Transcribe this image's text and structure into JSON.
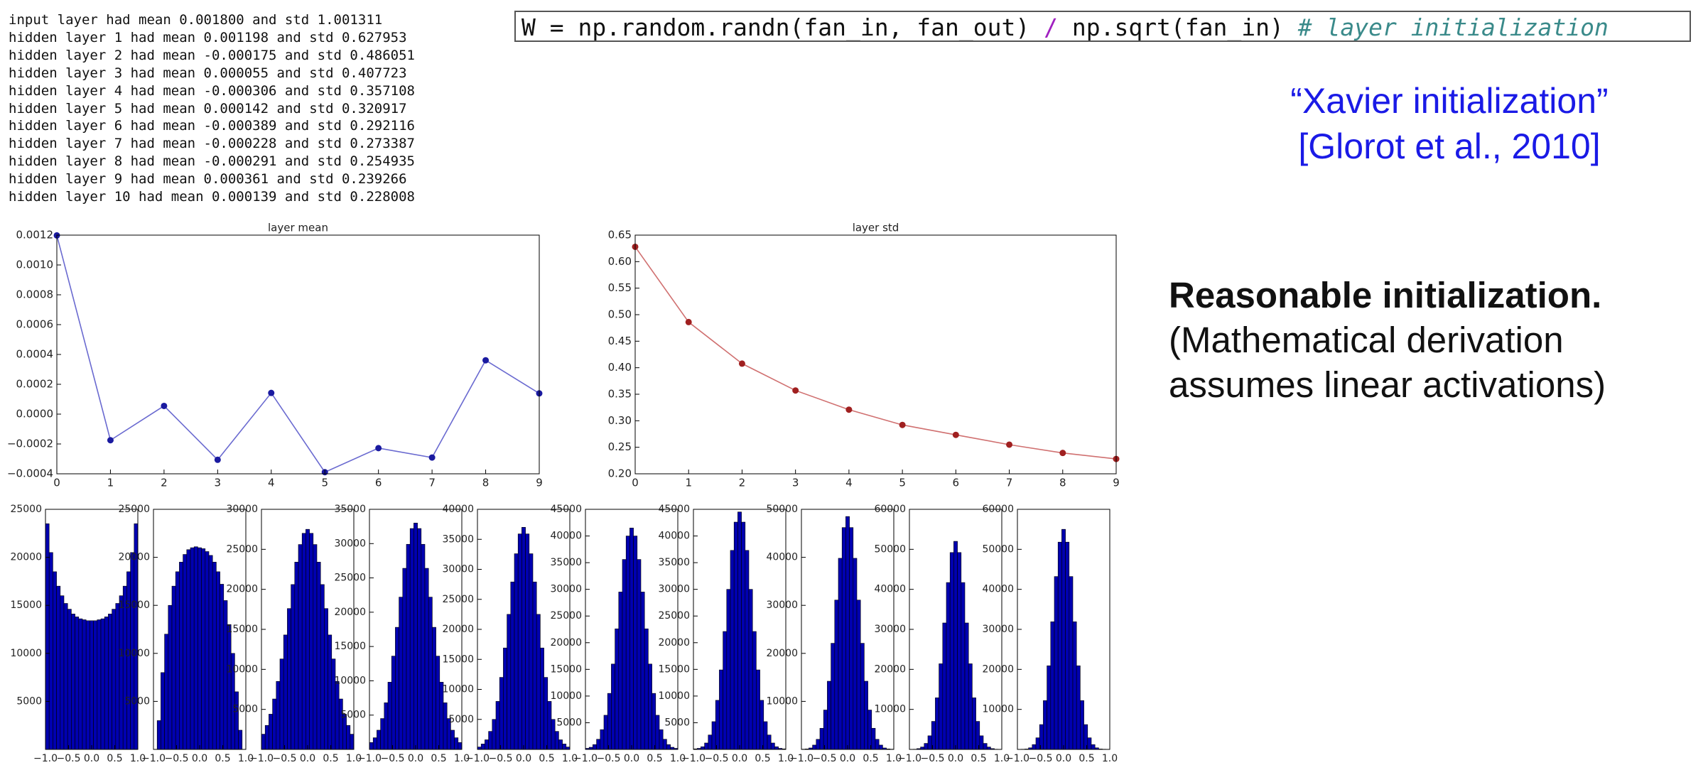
{
  "log": {
    "lines": [
      "input layer had mean 0.001800 and std 1.001311",
      "hidden layer 1 had mean 0.001198 and std 0.627953",
      "hidden layer 2 had mean -0.000175 and std 0.486051",
      "hidden layer 3 had mean 0.000055 and std 0.407723",
      "hidden layer 4 had mean -0.000306 and std 0.357108",
      "hidden layer 5 had mean 0.000142 and std 0.320917",
      "hidden layer 6 had mean -0.000389 and std 0.292116",
      "hidden layer 7 had mean -0.000228 and std 0.273387",
      "hidden layer 8 had mean -0.000291 and std 0.254935",
      "hidden layer 9 had mean 0.000361 and std 0.239266",
      "hidden layer 10 had mean 0.000139 and std 0.228008"
    ]
  },
  "code": {
    "parts": [
      "W = np.random.randn(fan_in, fan_out) ",
      "/",
      " np.sqrt(fan_in) ",
      "# layer initialization"
    ]
  },
  "citation": {
    "lines": [
      "“Xavier initialization”",
      "[Glorot et al., 2010]"
    ]
  },
  "note": {
    "title": "Reasonable initialization.",
    "lines": [
      "(Mathematical derivation",
      "assumes linear activations)"
    ]
  },
  "chart_data": [
    {
      "type": "line",
      "title": "layer mean",
      "x": [
        0,
        1,
        2,
        3,
        4,
        5,
        6,
        7,
        8,
        9
      ],
      "values": [
        0.001198,
        -0.000175,
        5.5e-05,
        -0.000306,
        0.000142,
        -0.000389,
        -0.000228,
        -0.000291,
        0.000361,
        0.000139
      ],
      "xlim": [
        0,
        9
      ],
      "ylim": [
        -0.0004,
        0.0012
      ],
      "xticks": [
        0,
        1,
        2,
        3,
        4,
        5,
        6,
        7,
        8,
        9
      ],
      "yticks": [
        {
          "value": -0.0004,
          "label": "−0.0004"
        },
        {
          "value": -0.0002,
          "label": "−0.0002"
        },
        {
          "value": 0,
          "label": "0.0000"
        },
        0.0002,
        0.0004,
        0.0006,
        0.0008,
        {
          "value": 0.001,
          "label": "0.0010"
        },
        0.0012
      ],
      "color": "#6a6ad0",
      "marker_color": "#1a1aa0"
    },
    {
      "type": "line",
      "title": "layer std",
      "x": [
        0,
        1,
        2,
        3,
        4,
        5,
        6,
        7,
        8,
        9
      ],
      "values": [
        0.627953,
        0.486051,
        0.407723,
        0.357108,
        0.320917,
        0.292116,
        0.273387,
        0.254935,
        0.239266,
        0.228008
      ],
      "xlim": [
        0,
        9
      ],
      "ylim": [
        0.2,
        0.65
      ],
      "xticks": [
        0,
        1,
        2,
        3,
        4,
        5,
        6,
        7,
        8,
        9
      ],
      "yticks": [
        {
          "value": 0.2,
          "label": "0.20"
        },
        0.25,
        {
          "value": 0.3,
          "label": "0.30"
        },
        0.35,
        {
          "value": 0.4,
          "label": "0.40"
        },
        0.45,
        {
          "value": 0.5,
          "label": "0.50"
        },
        0.55,
        {
          "value": 0.6,
          "label": "0.60"
        },
        0.65
      ],
      "color": "#d07070",
      "marker_color": "#a02020"
    },
    {
      "type": "histogram",
      "bins": [
        -1,
        -0.92,
        -0.84,
        -0.76,
        -0.68,
        -0.6,
        -0.52,
        -0.44,
        -0.36,
        -0.28,
        -0.2,
        -0.12,
        -0.04,
        0.04,
        0.12,
        0.2,
        0.28,
        0.36,
        0.44,
        0.52,
        0.6,
        0.68,
        0.76,
        0.84,
        0.92,
        1
      ],
      "values": [
        23500,
        20500,
        18500,
        17000,
        16000,
        15200,
        14600,
        14100,
        13800,
        13600,
        13500,
        13400,
        13400,
        13400,
        13500,
        13600,
        13800,
        14100,
        14600,
        15200,
        16000,
        17000,
        18500,
        20500,
        23500
      ],
      "xlim": [
        -1,
        1
      ],
      "ylim": [
        0,
        25000
      ],
      "xticks": [
        {
          "value": -1,
          "label": "−1.0"
        },
        {
          "value": -0.5,
          "label": "−0.5"
        },
        {
          "value": 0,
          "label": "0.0"
        },
        0.5,
        {
          "value": 1,
          "label": "1.0"
        }
      ],
      "yticks": [
        5000,
        10000,
        15000,
        20000,
        25000
      ],
      "color": "#0000b0"
    },
    {
      "type": "histogram",
      "bins": [
        -1,
        -0.92,
        -0.84,
        -0.76,
        -0.68,
        -0.6,
        -0.52,
        -0.44,
        -0.36,
        -0.28,
        -0.2,
        -0.12,
        -0.04,
        0.04,
        0.12,
        0.2,
        0.28,
        0.36,
        0.44,
        0.52,
        0.6,
        0.68,
        0.76,
        0.84,
        0.92,
        1
      ],
      "values": [
        0,
        3000,
        8000,
        12000,
        15000,
        17000,
        18500,
        19500,
        20300,
        20800,
        21000,
        21100,
        21000,
        20900,
        20600,
        20200,
        19500,
        18500,
        17200,
        15500,
        13000,
        10000,
        6000,
        2000,
        0
      ],
      "xlim": [
        -1,
        1
      ],
      "ylim": [
        0,
        25000
      ],
      "xticks": [
        {
          "value": -1,
          "label": "−1.0"
        },
        {
          "value": -0.5,
          "label": "−0.5"
        },
        {
          "value": 0,
          "label": "0.0"
        },
        0.5,
        {
          "value": 1,
          "label": "1.0"
        }
      ],
      "yticks": [
        5000,
        10000,
        15000,
        20000,
        25000
      ],
      "color": "#0000b0"
    },
    {
      "type": "histogram",
      "bins": [
        -1,
        -0.92,
        -0.84,
        -0.76,
        -0.68,
        -0.6,
        -0.52,
        -0.44,
        -0.36,
        -0.28,
        -0.2,
        -0.12,
        -0.04,
        0.04,
        0.12,
        0.2,
        0.28,
        0.36,
        0.44,
        0.52,
        0.6,
        0.68,
        0.76,
        0.84,
        0.92,
        1
      ],
      "values": [
        1900,
        3000,
        4400,
        6300,
        8500,
        11300,
        14300,
        17600,
        20600,
        23400,
        25600,
        27000,
        27500,
        27000,
        25600,
        23400,
        20600,
        17600,
        14300,
        11300,
        8500,
        6300,
        4400,
        3000,
        1900
      ],
      "xlim": [
        -1,
        1
      ],
      "ylim": [
        0,
        30000
      ],
      "xticks": [
        {
          "value": -1,
          "label": "−1.0"
        },
        {
          "value": -0.5,
          "label": "−0.5"
        },
        {
          "value": 0,
          "label": "0.0"
        },
        0.5,
        {
          "value": 1,
          "label": "1.0"
        }
      ],
      "yticks": [
        5000,
        10000,
        15000,
        20000,
        25000,
        30000
      ],
      "color": "#0000b0"
    },
    {
      "type": "histogram",
      "bins": [
        -1,
        -0.92,
        -0.84,
        -0.76,
        -0.68,
        -0.6,
        -0.52,
        -0.44,
        -0.36,
        -0.28,
        -0.2,
        -0.12,
        -0.04,
        0.04,
        0.12,
        0.2,
        0.28,
        0.36,
        0.44,
        0.52,
        0.6,
        0.68,
        0.76,
        0.84,
        0.92,
        1
      ],
      "values": [
        1000,
        1700,
        2800,
        4500,
        6800,
        9800,
        13600,
        17800,
        22200,
        26400,
        29900,
        32200,
        33000,
        32200,
        29900,
        26400,
        22200,
        17800,
        13600,
        9800,
        6800,
        4500,
        2800,
        1700,
        1000
      ],
      "xlim": [
        -1,
        1
      ],
      "ylim": [
        0,
        35000
      ],
      "xticks": [
        {
          "value": -1,
          "label": "−1.0"
        },
        {
          "value": -0.5,
          "label": "−0.5"
        },
        {
          "value": 0,
          "label": "0.0"
        },
        0.5,
        {
          "value": 1,
          "label": "1.0"
        }
      ],
      "yticks": [
        5000,
        10000,
        15000,
        20000,
        25000,
        30000,
        35000
      ],
      "color": "#0000b0"
    },
    {
      "type": "histogram",
      "bins": [
        -1,
        -0.92,
        -0.84,
        -0.76,
        -0.68,
        -0.6,
        -0.52,
        -0.44,
        -0.36,
        -0.28,
        -0.2,
        -0.12,
        -0.04,
        0.04,
        0.12,
        0.2,
        0.28,
        0.36,
        0.44,
        0.52,
        0.6,
        0.68,
        0.76,
        0.84,
        0.92,
        1
      ],
      "values": [
        400,
        900,
        1600,
        3000,
        5000,
        8000,
        12000,
        16900,
        22500,
        27900,
        32600,
        35900,
        37000,
        35900,
        32600,
        27900,
        22500,
        16900,
        12000,
        8000,
        5000,
        3000,
        1600,
        900,
        400
      ],
      "xlim": [
        -1,
        1
      ],
      "ylim": [
        0,
        40000
      ],
      "xticks": [
        {
          "value": -1,
          "label": "−1.0"
        },
        {
          "value": -0.5,
          "label": "−0.5"
        },
        {
          "value": 0,
          "label": "0.0"
        },
        0.5,
        {
          "value": 1,
          "label": "1.0"
        }
      ],
      "yticks": [
        5000,
        10000,
        15000,
        20000,
        25000,
        30000,
        35000,
        40000
      ],
      "color": "#0000b0"
    },
    {
      "type": "histogram",
      "bins": [
        -1,
        -0.92,
        -0.84,
        -0.76,
        -0.68,
        -0.6,
        -0.52,
        -0.44,
        -0.36,
        -0.28,
        -0.2,
        -0.12,
        -0.04,
        0.04,
        0.12,
        0.2,
        0.28,
        0.36,
        0.44,
        0.52,
        0.6,
        0.68,
        0.76,
        0.84,
        0.92,
        1
      ],
      "values": [
        200,
        400,
        900,
        1900,
        3700,
        6400,
        10500,
        16000,
        22600,
        29500,
        35600,
        40000,
        41500,
        40000,
        35600,
        29500,
        22600,
        16000,
        10500,
        6400,
        3700,
        1900,
        900,
        400,
        200
      ],
      "xlim": [
        -1,
        1
      ],
      "ylim": [
        0,
        45000
      ],
      "xticks": [
        {
          "value": -1,
          "label": "−1.0"
        },
        {
          "value": -0.5,
          "label": "−0.5"
        },
        {
          "value": 0,
          "label": "0.0"
        },
        0.5,
        {
          "value": 1,
          "label": "1.0"
        }
      ],
      "yticks": [
        5000,
        10000,
        15000,
        20000,
        25000,
        30000,
        35000,
        40000,
        45000
      ],
      "color": "#0000b0"
    },
    {
      "type": "histogram",
      "bins": [
        -1,
        -0.92,
        -0.84,
        -0.76,
        -0.68,
        -0.6,
        -0.52,
        -0.44,
        -0.36,
        -0.28,
        -0.2,
        -0.12,
        -0.04,
        0.04,
        0.12,
        0.2,
        0.28,
        0.36,
        0.44,
        0.52,
        0.6,
        0.68,
        0.76,
        0.84,
        0.92,
        1
      ],
      "values": [
        100,
        200,
        500,
        1200,
        2700,
        5200,
        9200,
        14900,
        22100,
        30000,
        37300,
        42600,
        44500,
        42600,
        37300,
        30000,
        22100,
        14900,
        9200,
        5200,
        2700,
        1200,
        500,
        200,
        100
      ],
      "xlim": [
        -1,
        1
      ],
      "ylim": [
        0,
        45000
      ],
      "xticks": [
        {
          "value": -1,
          "label": "−1.0"
        },
        {
          "value": -0.5,
          "label": "−0.5"
        },
        {
          "value": 0,
          "label": "0.0"
        },
        0.5,
        {
          "value": 1,
          "label": "1.0"
        }
      ],
      "yticks": [
        5000,
        10000,
        15000,
        20000,
        25000,
        30000,
        35000,
        40000,
        45000
      ],
      "color": "#0000b0"
    },
    {
      "type": "histogram",
      "bins": [
        -1,
        -0.92,
        -0.84,
        -0.76,
        -0.68,
        -0.6,
        -0.52,
        -0.44,
        -0.36,
        -0.28,
        -0.2,
        -0.12,
        -0.04,
        0.04,
        0.12,
        0.2,
        0.28,
        0.36,
        0.44,
        0.52,
        0.6,
        0.68,
        0.76,
        0.84,
        0.92,
        1
      ],
      "values": [
        50,
        100,
        300,
        900,
        2100,
        4400,
        8200,
        14200,
        22100,
        31100,
        39800,
        46200,
        48500,
        46200,
        39800,
        31100,
        22100,
        14200,
        8200,
        4400,
        2100,
        900,
        300,
        100,
        50
      ],
      "xlim": [
        -1,
        1
      ],
      "ylim": [
        0,
        50000
      ],
      "xticks": [
        {
          "value": -1,
          "label": "−1.0"
        },
        {
          "value": -0.5,
          "label": "−0.5"
        },
        {
          "value": 0,
          "label": "0.0"
        },
        0.5,
        {
          "value": 1,
          "label": "1.0"
        }
      ],
      "yticks": [
        10000,
        20000,
        30000,
        40000,
        50000
      ],
      "color": "#0000b0"
    },
    {
      "type": "histogram",
      "bins": [
        -1,
        -0.92,
        -0.84,
        -0.76,
        -0.68,
        -0.6,
        -0.52,
        -0.44,
        -0.36,
        -0.28,
        -0.2,
        -0.12,
        -0.04,
        0.04,
        0.12,
        0.2,
        0.28,
        0.36,
        0.44,
        0.52,
        0.6,
        0.68,
        0.76,
        0.84,
        0.92,
        1
      ],
      "values": [
        0,
        50,
        200,
        600,
        1500,
        3400,
        7000,
        12900,
        21400,
        31600,
        41700,
        49200,
        52000,
        49200,
        41700,
        31600,
        21400,
        12900,
        7000,
        3400,
        1500,
        600,
        200,
        50,
        0
      ],
      "xlim": [
        -1,
        1
      ],
      "ylim": [
        0,
        60000
      ],
      "xticks": [
        {
          "value": -1,
          "label": "−1.0"
        },
        {
          "value": -0.5,
          "label": "−0.5"
        },
        {
          "value": 0,
          "label": "0.0"
        },
        0.5,
        {
          "value": 1,
          "label": "1.0"
        }
      ],
      "yticks": [
        10000,
        20000,
        30000,
        40000,
        50000,
        60000
      ],
      "color": "#0000b0"
    },
    {
      "type": "histogram",
      "bins": [
        -1,
        -0.92,
        -0.84,
        -0.76,
        -0.68,
        -0.6,
        -0.52,
        -0.44,
        -0.36,
        -0.28,
        -0.2,
        -0.12,
        -0.04,
        0.04,
        0.12,
        0.2,
        0.28,
        0.36,
        0.44,
        0.52,
        0.6,
        0.68,
        0.76,
        0.84,
        0.92,
        1
      ],
      "values": [
        0,
        50,
        100,
        400,
        1200,
        2900,
        6200,
        12200,
        20900,
        31900,
        43200,
        51800,
        55000,
        51800,
        43200,
        31900,
        20900,
        12200,
        6200,
        2900,
        1200,
        400,
        100,
        50,
        0
      ],
      "xlim": [
        -1,
        1
      ],
      "ylim": [
        0,
        60000
      ],
      "xticks": [
        {
          "value": -1,
          "label": "−1.0"
        },
        {
          "value": -0.5,
          "label": "−0.5"
        },
        {
          "value": 0,
          "label": "0.0"
        },
        0.5,
        {
          "value": 1,
          "label": "1.0"
        }
      ],
      "yticks": [
        10000,
        20000,
        30000,
        40000,
        50000,
        60000
      ],
      "color": "#0000b0"
    }
  ]
}
